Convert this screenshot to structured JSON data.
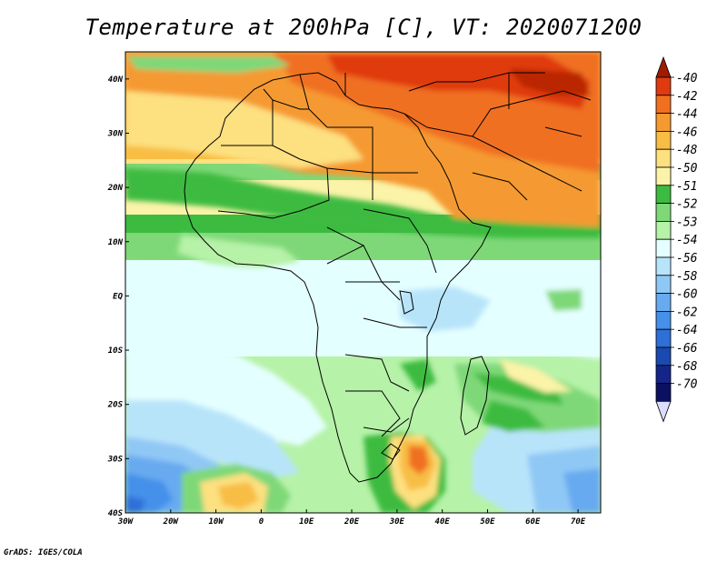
{
  "title": "Temperature at 200hPa [C], VT: 2020071200",
  "footer": "GrADS: IGES/COLA",
  "map": {
    "lon_labels": [
      "30W",
      "20W",
      "10W",
      "0",
      "10E",
      "20E",
      "30E",
      "40E",
      "50E",
      "60E",
      "70E"
    ],
    "lat_labels": [
      "40N",
      "30N",
      "20N",
      "10N",
      "EQ",
      "10S",
      "20S",
      "30S",
      "40S"
    ],
    "lon_range": [
      -30,
      75
    ],
    "lat_range": [
      -40,
      45
    ]
  },
  "colorbar": {
    "labels": [
      "-40",
      "-42",
      "-44",
      "-46",
      "-48",
      "-50",
      "-51",
      "-52",
      "-53",
      "-54",
      "-56",
      "-58",
      "-60",
      "-62",
      "-64",
      "-66",
      "-68",
      "-70"
    ],
    "colors": [
      "#a01a00",
      "#e03a10",
      "#f07020",
      "#f59a30",
      "#f8bd45",
      "#fde080",
      "#fbf3a8",
      "#3cbb40",
      "#7fd878",
      "#b6f2a8",
      "#e4ffff",
      "#b8e4fa",
      "#90c8f5",
      "#68aaf0",
      "#4590ea",
      "#2e6fd8",
      "#1a4ab0",
      "#14258a",
      "#0c1060",
      "#dcdcff"
    ]
  }
}
